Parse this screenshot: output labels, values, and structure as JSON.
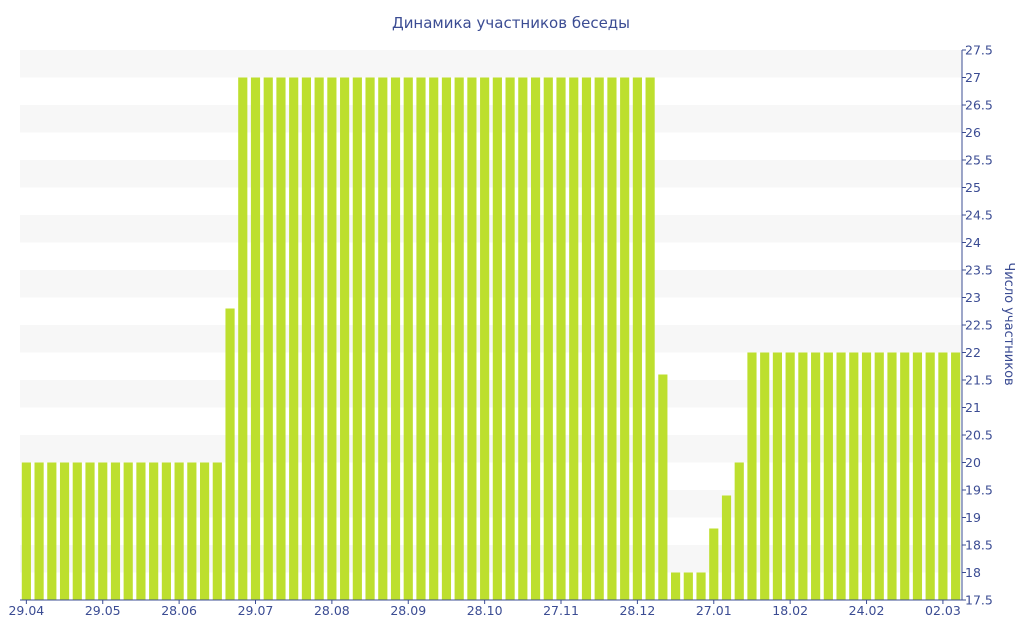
{
  "chart_data": {
    "type": "bar",
    "title": "Динамика участников беседы",
    "xlabel": "",
    "ylabel": "Число участников",
    "ylim": [
      17.5,
      27.5
    ],
    "y_axis_side": "right",
    "y_ticks": [
      "17.5",
      "18",
      "18.5",
      "19",
      "19.5",
      "20",
      "20.5",
      "21",
      "21.5",
      "22",
      "22.5",
      "23",
      "23.5",
      "24",
      "24.5",
      "25",
      "25.5",
      "26",
      "26.5",
      "27",
      "27.5"
    ],
    "x_tick_labels": [
      {
        "label": "29.04",
        "index": 0
      },
      {
        "label": "29.05",
        "index": 6
      },
      {
        "label": "28.06",
        "index": 12
      },
      {
        "label": "29.07",
        "index": 18
      },
      {
        "label": "28.08",
        "index": 24
      },
      {
        "label": "28.09",
        "index": 30
      },
      {
        "label": "28.10",
        "index": 36
      },
      {
        "label": "27.11",
        "index": 42
      },
      {
        "label": "28.12",
        "index": 48
      },
      {
        "label": "27.01",
        "index": 54
      },
      {
        "label": "18.02",
        "index": 60
      },
      {
        "label": "24.02",
        "index": 66
      },
      {
        "label": "02.03",
        "index": 72
      }
    ],
    "values": [
      20,
      20,
      20,
      20,
      20,
      20,
      20,
      20,
      20,
      20,
      20,
      20,
      20,
      20,
      20,
      20,
      22.8,
      27,
      27,
      27,
      27,
      27,
      27,
      27,
      27,
      27,
      27,
      27,
      27,
      27,
      27,
      27,
      27,
      27,
      27,
      27,
      27,
      27,
      27,
      27,
      27,
      27,
      27,
      27,
      27,
      27,
      27,
      27,
      27,
      27,
      21.6,
      18,
      18,
      18,
      18.8,
      19.4,
      20,
      22,
      22,
      22,
      22,
      22,
      22,
      22,
      22,
      22,
      22,
      22,
      22,
      22,
      22,
      22,
      22,
      22
    ],
    "colors": {
      "bar": "#bddf2e",
      "band": "#f7f7f7",
      "text": "#3b4c93",
      "axis": "#3b4c93"
    },
    "grid": "alternating horizontal bands"
  }
}
